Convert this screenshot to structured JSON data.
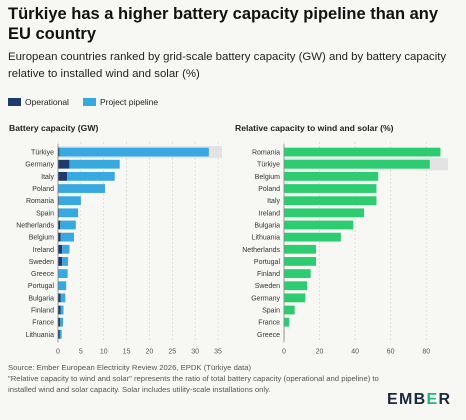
{
  "title": "Türkiye has a higher battery capacity pipeline than any EU country",
  "subtitle": "European countries ranked by grid-scale battery capacity (GW) and by battery capacity relative to installed wind and solar (%)",
  "legend": {
    "operational": "Operational",
    "pipeline": "Project pipeline"
  },
  "colors": {
    "operational": "#1e3a6e",
    "pipeline": "#38a8e0",
    "ratio": "#2ecc71",
    "highlight_band": "#e3e3e3"
  },
  "chart_data": [
    {
      "type": "bar",
      "orientation": "horizontal",
      "stacked": true,
      "title": "Battery capacity (GW)",
      "categories": [
        "Türkiye",
        "Germany",
        "Italy",
        "Poland",
        "Romania",
        "Spain",
        "Netherlands",
        "Belgium",
        "Ireland",
        "Sweden",
        "Greece",
        "Portugal",
        "Bulgaria",
        "Finland",
        "France",
        "Lithuania"
      ],
      "series": [
        {
          "name": "Operational",
          "values": [
            0.3,
            2.5,
            2.0,
            0.1,
            0.2,
            0.2,
            0.5,
            0.6,
            0.9,
            0.9,
            0.1,
            0.1,
            0.6,
            0.6,
            0.5,
            0.4
          ]
        },
        {
          "name": "Project pipeline",
          "values": [
            32.7,
            11.0,
            10.4,
            10.2,
            4.8,
            4.2,
            3.4,
            2.9,
            1.6,
            1.3,
            2.0,
            1.7,
            1.0,
            0.6,
            0.6,
            0.4
          ]
        }
      ],
      "xlim": [
        0,
        35
      ],
      "xticks": [
        "0",
        "5",
        "10",
        "15",
        "20",
        "25",
        "30",
        "35"
      ],
      "highlight": "Türkiye"
    },
    {
      "type": "bar",
      "orientation": "horizontal",
      "title": "Relative capacity to wind and solar (%)",
      "categories": [
        "Romania",
        "Türkiye",
        "Belgium",
        "Poland",
        "Italy",
        "Ireland",
        "Bulgaria",
        "Lithuania",
        "Netherlands",
        "Portugal",
        "Finland",
        "Sweden",
        "Germany",
        "Spain",
        "France",
        "Greece"
      ],
      "values": [
        88,
        82,
        53,
        52,
        52,
        45,
        39,
        32,
        18,
        18,
        15,
        13,
        12,
        6,
        3,
        0.3
      ],
      "xlim": [
        0,
        90
      ],
      "xticks": [
        "0",
        "20",
        "40",
        "60",
        "80"
      ],
      "highlight": "Türkiye"
    }
  ],
  "source": "Source: Ember European Electricity Review 2026, EPDK (Türkiye data)",
  "footnote": "\"Relative capacity to wind and solar\" represents the ratio of total battery capacity (operational and pipeline) to installed wind and solar capacity. Solar includes utility-scale installations only.",
  "brand": {
    "before": "EMB",
    "accent": "E",
    "after": "R"
  }
}
